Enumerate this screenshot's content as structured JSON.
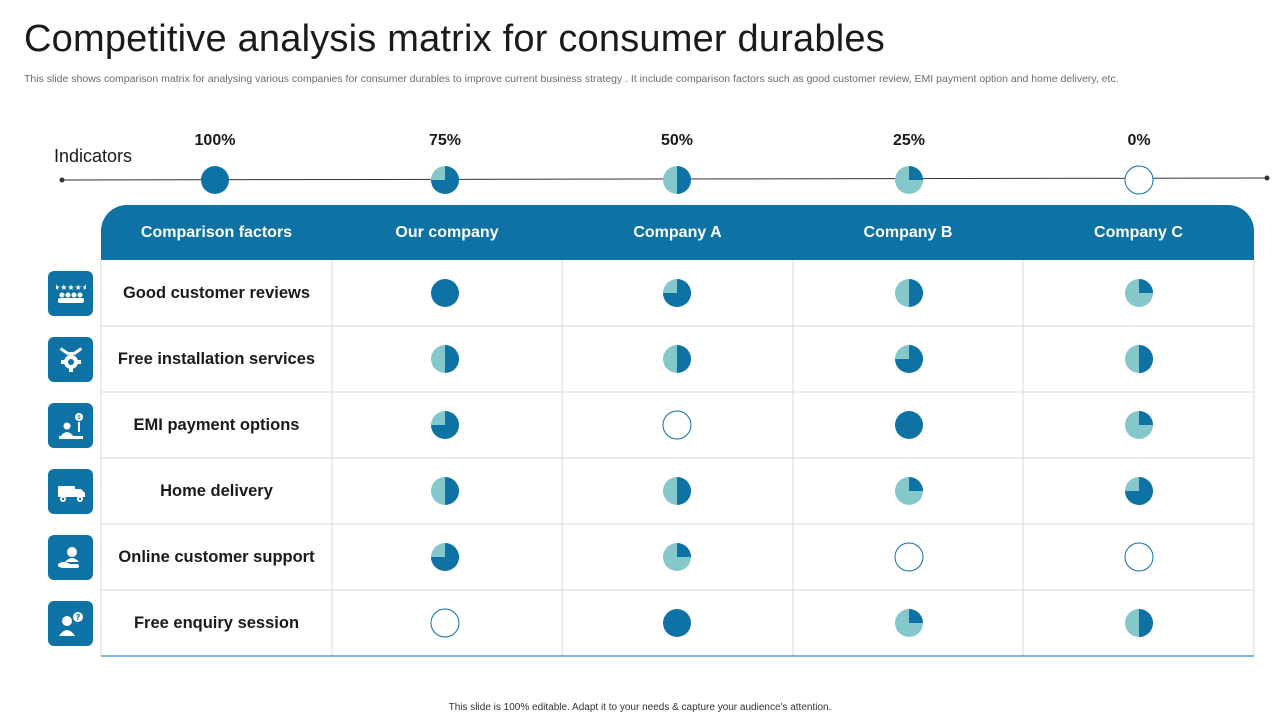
{
  "title": "Competitive analysis matrix for consumer durables",
  "subtitle": "This slide shows comparison matrix for analysing various companies for consumer durables to improve current business strategy . It include comparison factors such as good customer review, EMI  payment option and home delivery, etc.",
  "indicators": {
    "label": "Indicators",
    "levels": [
      {
        "label": "100%",
        "value": 100
      },
      {
        "label": "75%",
        "value": 75
      },
      {
        "label": "50%",
        "value": 50
      },
      {
        "label": "25%",
        "value": 25
      },
      {
        "label": "0%",
        "value": 0
      }
    ]
  },
  "table": {
    "headers": [
      "Comparison factors",
      "Our company",
      "Company A",
      "Company B",
      "Company C"
    ],
    "rows": [
      {
        "factor": "Good customer reviews",
        "icon": "rating-stars-people-icon",
        "values": [
          100,
          75,
          50,
          25
        ]
      },
      {
        "factor": "Free installation services",
        "icon": "wrench-gear-icon",
        "values": [
          50,
          50,
          75,
          50
        ]
      },
      {
        "factor": "EMI payment options",
        "icon": "payment-person-icon",
        "values": [
          75,
          0,
          100,
          25
        ]
      },
      {
        "factor": "Home delivery",
        "icon": "delivery-truck-icon",
        "values": [
          50,
          50,
          25,
          75
        ]
      },
      {
        "factor": "Online customer support",
        "icon": "support-hand-icon",
        "values": [
          75,
          25,
          0,
          0
        ]
      },
      {
        "factor": "Free enquiry session",
        "icon": "enquiry-person-icon",
        "values": [
          0,
          100,
          25,
          50
        ]
      }
    ]
  },
  "colors": {
    "dark": "#0f72a4",
    "light": "#84c8cb",
    "grid": "#d9d9d9"
  },
  "footer": "This slide is 100% editable.  Adapt it to your needs & capture your audience's attention."
}
